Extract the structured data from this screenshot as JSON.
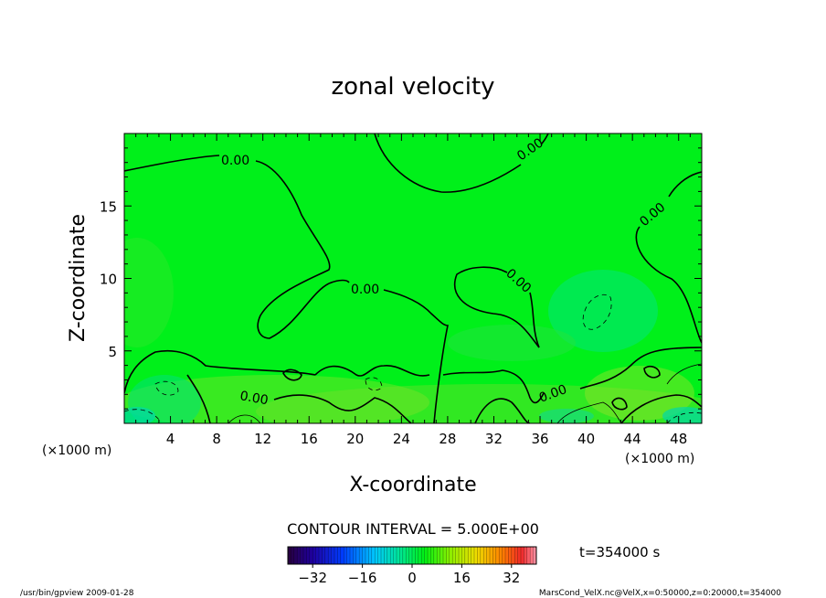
{
  "chart_data": {
    "type": "heatmap",
    "title": "zonal velocity",
    "xlabel": "X-coordinate",
    "ylabel": "Z-coordinate",
    "x_unit": "(×1000 m)",
    "y_unit": "(×1000 m)",
    "xlim": [
      0,
      50
    ],
    "ylim": [
      0,
      20
    ],
    "x_ticks": [
      4,
      8,
      12,
      16,
      20,
      24,
      28,
      32,
      36,
      40,
      44,
      48
    ],
    "y_ticks": [
      5,
      10,
      15
    ],
    "contour_label": "0.00",
    "contour_interval_text": "CONTOUR INTERVAL = 5.000E+00",
    "time_text": "t=354000 s",
    "colorbar": {
      "min": -40,
      "max": 40,
      "ticks": [
        -32,
        -16,
        0,
        16,
        32
      ]
    },
    "footer_left": "/usr/bin/gpview  2009-01-28",
    "footer_right": "MarsCond_VelX.nc@VelX,x=0:50000,z=0:20000,t=354000",
    "colors": {
      "field": "#00ee1a",
      "contour": "#000000"
    }
  }
}
